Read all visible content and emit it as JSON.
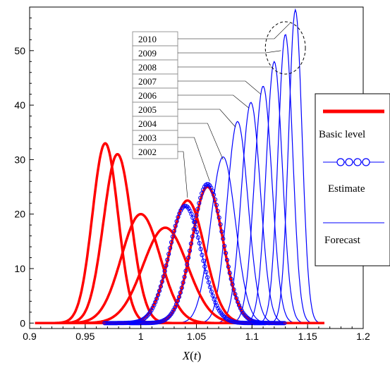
{
  "chart_data": {
    "type": "line",
    "title": "",
    "xlabel": "X(t)",
    "ylabel": "",
    "xlim": [
      0.9,
      1.2
    ],
    "ylim": [
      -1,
      58
    ],
    "x_ticks": [
      "0.9",
      "0.95",
      "1",
      "1.05",
      "1.1",
      "1.15",
      "1.2"
    ],
    "y_ticks": [
      "0",
      "10",
      "20",
      "30",
      "40",
      "50"
    ],
    "grid": false,
    "legend_position": "right",
    "legend": [
      {
        "label": "Basic level",
        "style": "thick-red-line",
        "color": "#ff0000"
      },
      {
        "label": "Estimate",
        "style": "blue-line-circles",
        "color": "#0000ff"
      },
      {
        "label": "Forecast",
        "style": "thin-blue-line",
        "color": "#0000ff"
      }
    ],
    "year_labels": [
      "2010",
      "2009",
      "2008",
      "2007",
      "2006",
      "2005",
      "2004",
      "2003",
      "2002"
    ],
    "series": [
      {
        "group": "Basic level",
        "peak_x": 0.968,
        "peak_y": 33,
        "sigma": 0.0115
      },
      {
        "group": "Basic level",
        "peak_x": 0.979,
        "peak_y": 31,
        "sigma": 0.0125
      },
      {
        "group": "Basic level",
        "peak_x": 1.0,
        "peak_y": 20,
        "sigma": 0.0175
      },
      {
        "group": "Basic level",
        "peak_x": 1.022,
        "peak_y": 17.5,
        "sigma": 0.02
      },
      {
        "group": "Basic level",
        "peak_x": 1.042,
        "peak_y": 22.5,
        "sigma": 0.0155
      },
      {
        "group": "Basic level",
        "peak_x": 1.06,
        "peak_y": 25,
        "sigma": 0.014
      },
      {
        "group": "Estimate",
        "peak_x": 1.04,
        "peak_y": 21.5,
        "sigma": 0.0145
      },
      {
        "group": "Estimate",
        "peak_x": 1.06,
        "peak_y": 25.5,
        "sigma": 0.014
      },
      {
        "group": "Forecast",
        "label": "2004",
        "peak_x": 1.074,
        "peak_y": 30.5,
        "sigma": 0.0112
      },
      {
        "group": "Forecast",
        "label": "2005",
        "peak_x": 1.087,
        "peak_y": 37,
        "sigma": 0.0094
      },
      {
        "group": "Forecast",
        "label": "2006",
        "peak_x": 1.099,
        "peak_y": 40.5,
        "sigma": 0.0085
      },
      {
        "group": "Forecast",
        "label": "2007",
        "peak_x": 1.11,
        "peak_y": 43.5,
        "sigma": 0.0079
      },
      {
        "group": "Forecast",
        "label": "2008",
        "peak_x": 1.12,
        "peak_y": 48,
        "sigma": 0.0072
      },
      {
        "group": "Forecast",
        "label": "2009",
        "peak_x": 1.13,
        "peak_y": 53,
        "sigma": 0.0065
      },
      {
        "group": "Forecast",
        "label": "2010",
        "peak_x": 1.139,
        "peak_y": 57.5,
        "sigma": 0.006
      }
    ],
    "annotations": [
      {
        "type": "dashed-ellipse",
        "cx": 1.13,
        "cy": 50.5,
        "rx": 0.018,
        "ry": 4.8
      }
    ]
  }
}
